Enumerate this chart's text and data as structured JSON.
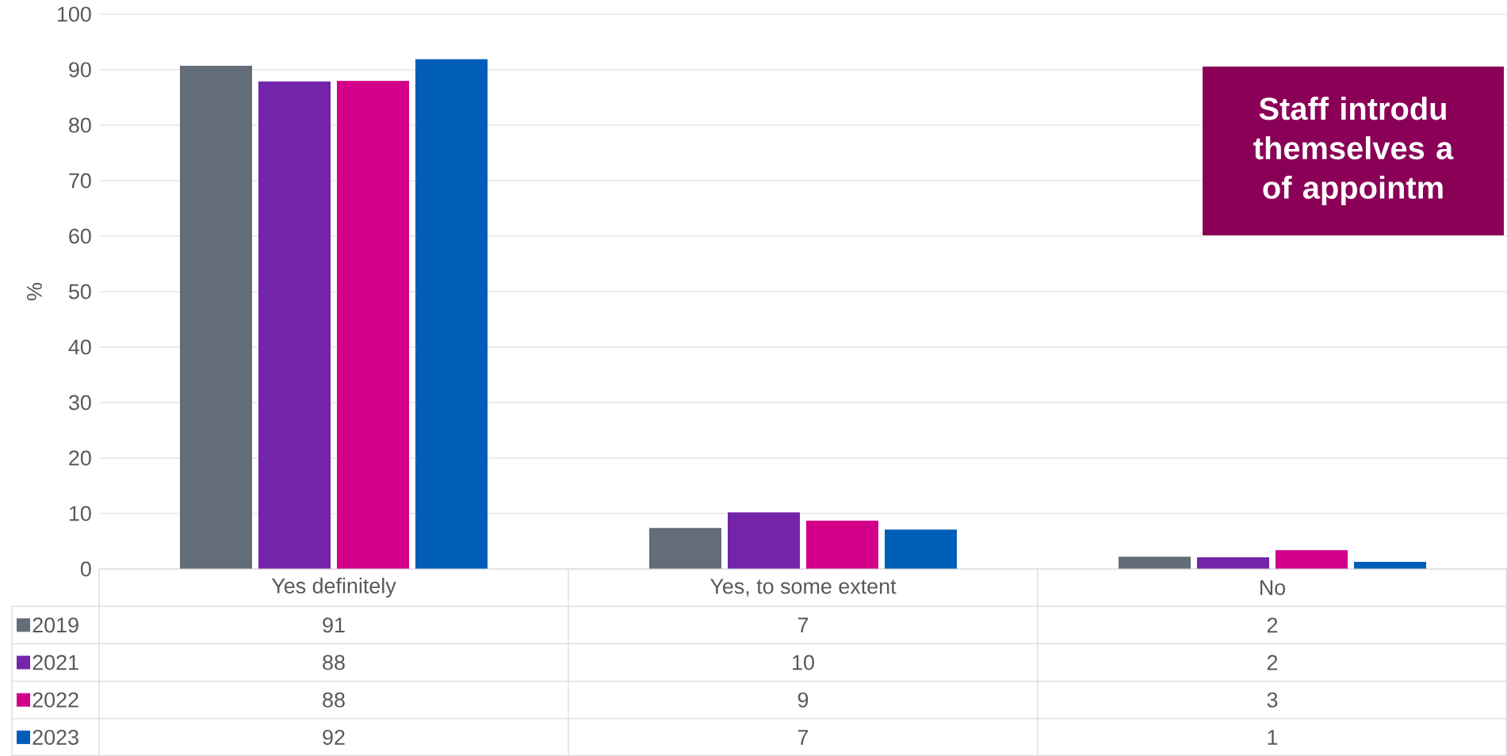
{
  "chart_data": {
    "type": "bar",
    "title": "Staff introdu themselves a of appointm",
    "ylabel": "%",
    "categories": [
      "Yes definitely",
      "Yes, to some extent",
      "No"
    ],
    "series": [
      {
        "name": "2019",
        "color": "#636d78",
        "values": [
          90.7,
          7.4,
          2.2
        ],
        "value_labels": [
          "91",
          "7",
          "2"
        ]
      },
      {
        "name": "2021",
        "color": "#7324a8",
        "values": [
          87.9,
          10.2,
          2.1
        ],
        "value_labels": [
          "88",
          "10",
          "2"
        ]
      },
      {
        "name": "2022",
        "color": "#d4008a",
        "values": [
          88.0,
          8.7,
          3.4
        ],
        "value_labels": [
          "88",
          "9",
          "3"
        ]
      },
      {
        "name": "2023",
        "color": "#005eb8",
        "values": [
          91.9,
          7.1,
          1.3
        ],
        "value_labels": [
          "92",
          "7",
          "1"
        ]
      }
    ],
    "ylim": [
      0,
      100
    ],
    "yticks": [
      0,
      10,
      20,
      30,
      40,
      50,
      60,
      70,
      80,
      90,
      100
    ],
    "grid": "y",
    "legend": "bottom"
  }
}
